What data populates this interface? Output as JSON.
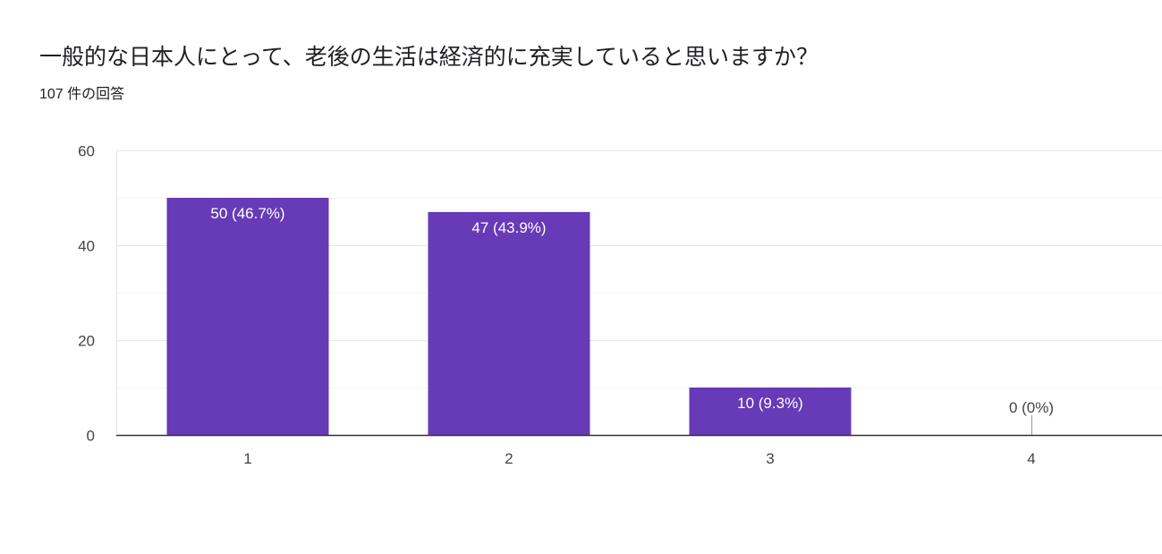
{
  "header": {
    "title": "一般的な日本人にとって、老後の生活は経済的に充実していると思いますか？",
    "response_count": "107 件の回答"
  },
  "colors": {
    "bar": "#673ab7",
    "grid": "#e6e6e6",
    "axis": "#333333",
    "label_inside": "#ffffff",
    "label_outside": "#444444"
  },
  "chart_data": {
    "type": "bar",
    "categories": [
      "1",
      "2",
      "3",
      "4"
    ],
    "values": [
      50,
      47,
      10,
      0
    ],
    "data_labels": [
      "50 (46.7%)",
      "47 (43.9%)",
      "10 (9.3%)",
      "0 (0%)"
    ],
    "ylim": [
      0,
      60
    ],
    "yticks": [
      0,
      20,
      40,
      60
    ],
    "minor_grid": [
      10,
      30,
      50
    ],
    "grid": true,
    "legend": false
  }
}
